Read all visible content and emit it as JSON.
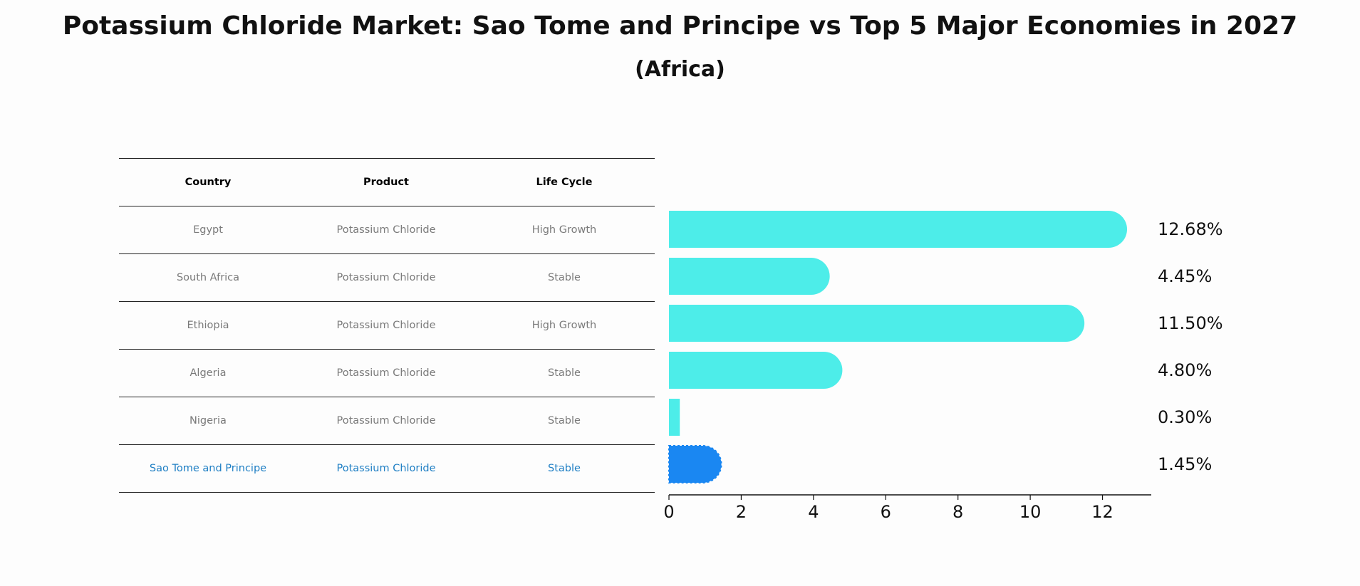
{
  "title": "Potassium Chloride Market: Sao Tome and Principe vs Top 5 Major Economies in 2027",
  "subtitle": "(Africa)",
  "table": {
    "headers": [
      "Country",
      "Product",
      "Life Cycle"
    ],
    "rows": [
      {
        "country": "Egypt",
        "product": "Potassium Chloride",
        "life_cycle": "High Growth"
      },
      {
        "country": "South Africa",
        "product": "Potassium Chloride",
        "life_cycle": "Stable"
      },
      {
        "country": "Ethiopia",
        "product": "Potassium Chloride",
        "life_cycle": "High Growth"
      },
      {
        "country": "Algeria",
        "product": "Potassium Chloride",
        "life_cycle": "Stable"
      },
      {
        "country": "Nigeria",
        "product": "Potassium Chloride",
        "life_cycle": "Stable"
      },
      {
        "country": "Sao Tome and Principe",
        "product": "Potassium Chloride",
        "life_cycle": "Stable"
      }
    ]
  },
  "colors": {
    "bar": "#4dede9",
    "highlight_bar": "#1a87f2",
    "highlight_text": "#1f7fc4",
    "muted_text": "#7a7a7a"
  },
  "chart_data": {
    "type": "bar",
    "orientation": "horizontal",
    "categories": [
      "Egypt",
      "South Africa",
      "Ethiopia",
      "Algeria",
      "Nigeria",
      "Sao Tome and Principe"
    ],
    "values": [
      12.68,
      4.45,
      11.5,
      4.8,
      0.3,
      1.45
    ],
    "value_labels": [
      "12.68%",
      "4.45%",
      "11.50%",
      "4.80%",
      "0.30%",
      "1.45%"
    ],
    "highlight": "Sao Tome and Principe",
    "xlim": [
      0,
      13.35
    ],
    "xticks": [
      0,
      2,
      4,
      6,
      8,
      10,
      12
    ],
    "xtick_labels": [
      "0",
      "2",
      "4",
      "6",
      "8",
      "10",
      "12"
    ],
    "xlabel": "",
    "ylabel": ""
  }
}
